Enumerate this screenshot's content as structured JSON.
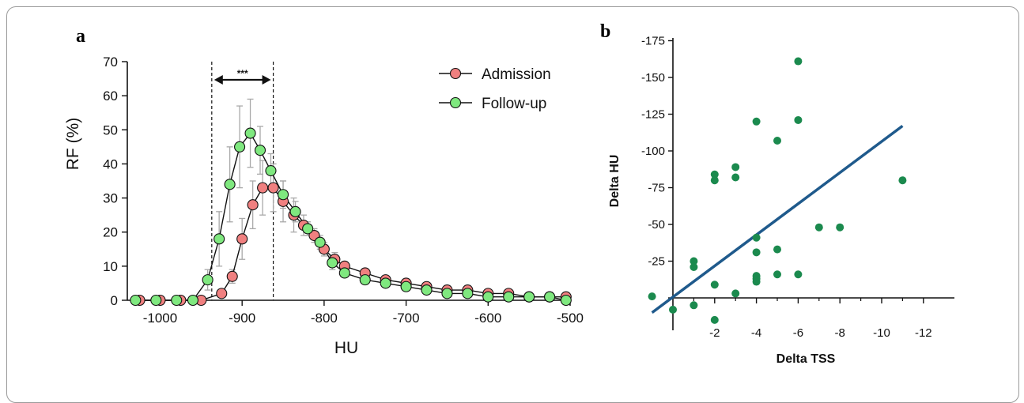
{
  "chart_data": [
    {
      "panel": "a",
      "type": "line",
      "xlabel": "HU",
      "ylabel": "RF (%)",
      "xlim": [
        -1040,
        -500
      ],
      "ylim": [
        0,
        70
      ],
      "xticks": [
        -1000,
        -900,
        -800,
        -700,
        -600,
        -500
      ],
      "yticks": [
        0,
        10,
        20,
        30,
        40,
        50,
        60,
        70
      ],
      "legend_position": "top-right",
      "significance_label": "***",
      "significance_range": [
        -937,
        -862
      ],
      "series": [
        {
          "name": "Admission",
          "color": "#f08080",
          "x": [
            -1025,
            -1000,
            -975,
            -950,
            -925,
            -912,
            -900,
            -887,
            -875,
            -862,
            -850,
            -837,
            -825,
            -812,
            -800,
            -787,
            -775,
            -750,
            -725,
            -700,
            -675,
            -650,
            -625,
            -600,
            -575,
            -550,
            -525,
            -505
          ],
          "y": [
            0,
            0,
            0,
            0,
            2,
            7,
            18,
            28,
            33,
            33,
            29,
            25,
            22,
            19,
            15,
            12,
            10,
            8,
            6,
            5,
            4,
            3,
            3,
            2,
            2,
            1,
            1,
            1
          ],
          "error": [
            0,
            0,
            0,
            0,
            1,
            2,
            6,
            7,
            8,
            7,
            6,
            5,
            3,
            2,
            2,
            2,
            1,
            1,
            1,
            1,
            0,
            0,
            0,
            0,
            0,
            0,
            0,
            0
          ]
        },
        {
          "name": "Follow-up",
          "color": "#7fe87f",
          "x": [
            -1030,
            -1005,
            -980,
            -960,
            -942,
            -928,
            -915,
            -903,
            -890,
            -878,
            -865,
            -850,
            -835,
            -820,
            -805,
            -790,
            -775,
            -750,
            -725,
            -700,
            -675,
            -650,
            -625,
            -600,
            -575,
            -550,
            -525,
            -505
          ],
          "y": [
            0,
            0,
            0,
            0,
            6,
            18,
            34,
            45,
            49,
            44,
            38,
            31,
            26,
            21,
            17,
            11,
            8,
            6,
            5,
            4,
            3,
            2,
            2,
            1,
            1,
            1,
            1,
            0
          ],
          "error": [
            0,
            0,
            0,
            0,
            3,
            8,
            11,
            12,
            10,
            7,
            5,
            4,
            3,
            2,
            2,
            2,
            1,
            1,
            1,
            1,
            0,
            0,
            0,
            0,
            0,
            0,
            0,
            0
          ]
        }
      ]
    },
    {
      "panel": "b",
      "type": "scatter",
      "xlabel": "Delta TSS",
      "ylabel": "Delta HU",
      "xlim": [
        1.2,
        -12.4
      ],
      "ylim": [
        20,
        -180
      ],
      "xticks": [
        -2,
        -4,
        -6,
        -8,
        -10,
        -12
      ],
      "yticks": [
        -175,
        -150,
        -125,
        -100,
        -75,
        -50,
        -25
      ],
      "point_color": "#1b8a4e",
      "line_color": "#1f5a8c",
      "points": [
        {
          "x": 1,
          "y": -1
        },
        {
          "x": 0,
          "y": 8
        },
        {
          "x": -1,
          "y": -25
        },
        {
          "x": -1,
          "y": -21
        },
        {
          "x": -1,
          "y": 5
        },
        {
          "x": -2,
          "y": -84
        },
        {
          "x": -2,
          "y": -80
        },
        {
          "x": -2,
          "y": -9
        },
        {
          "x": -2,
          "y": 15
        },
        {
          "x": -3,
          "y": -89
        },
        {
          "x": -3,
          "y": -82
        },
        {
          "x": -3,
          "y": -3
        },
        {
          "x": -4,
          "y": -120
        },
        {
          "x": -4,
          "y": -41
        },
        {
          "x": -4,
          "y": -31
        },
        {
          "x": -4,
          "y": -15
        },
        {
          "x": -4,
          "y": -13
        },
        {
          "x": -4,
          "y": -11
        },
        {
          "x": -5,
          "y": -107
        },
        {
          "x": -5,
          "y": -33
        },
        {
          "x": -5,
          "y": -16
        },
        {
          "x": -6,
          "y": -161
        },
        {
          "x": -6,
          "y": -121
        },
        {
          "x": -6,
          "y": -16
        },
        {
          "x": -7,
          "y": -48
        },
        {
          "x": -8,
          "y": -48
        },
        {
          "x": -11,
          "y": -80
        }
      ],
      "regression_line": {
        "x": [
          1,
          -11
        ],
        "y": [
          10,
          -117
        ]
      }
    }
  ]
}
